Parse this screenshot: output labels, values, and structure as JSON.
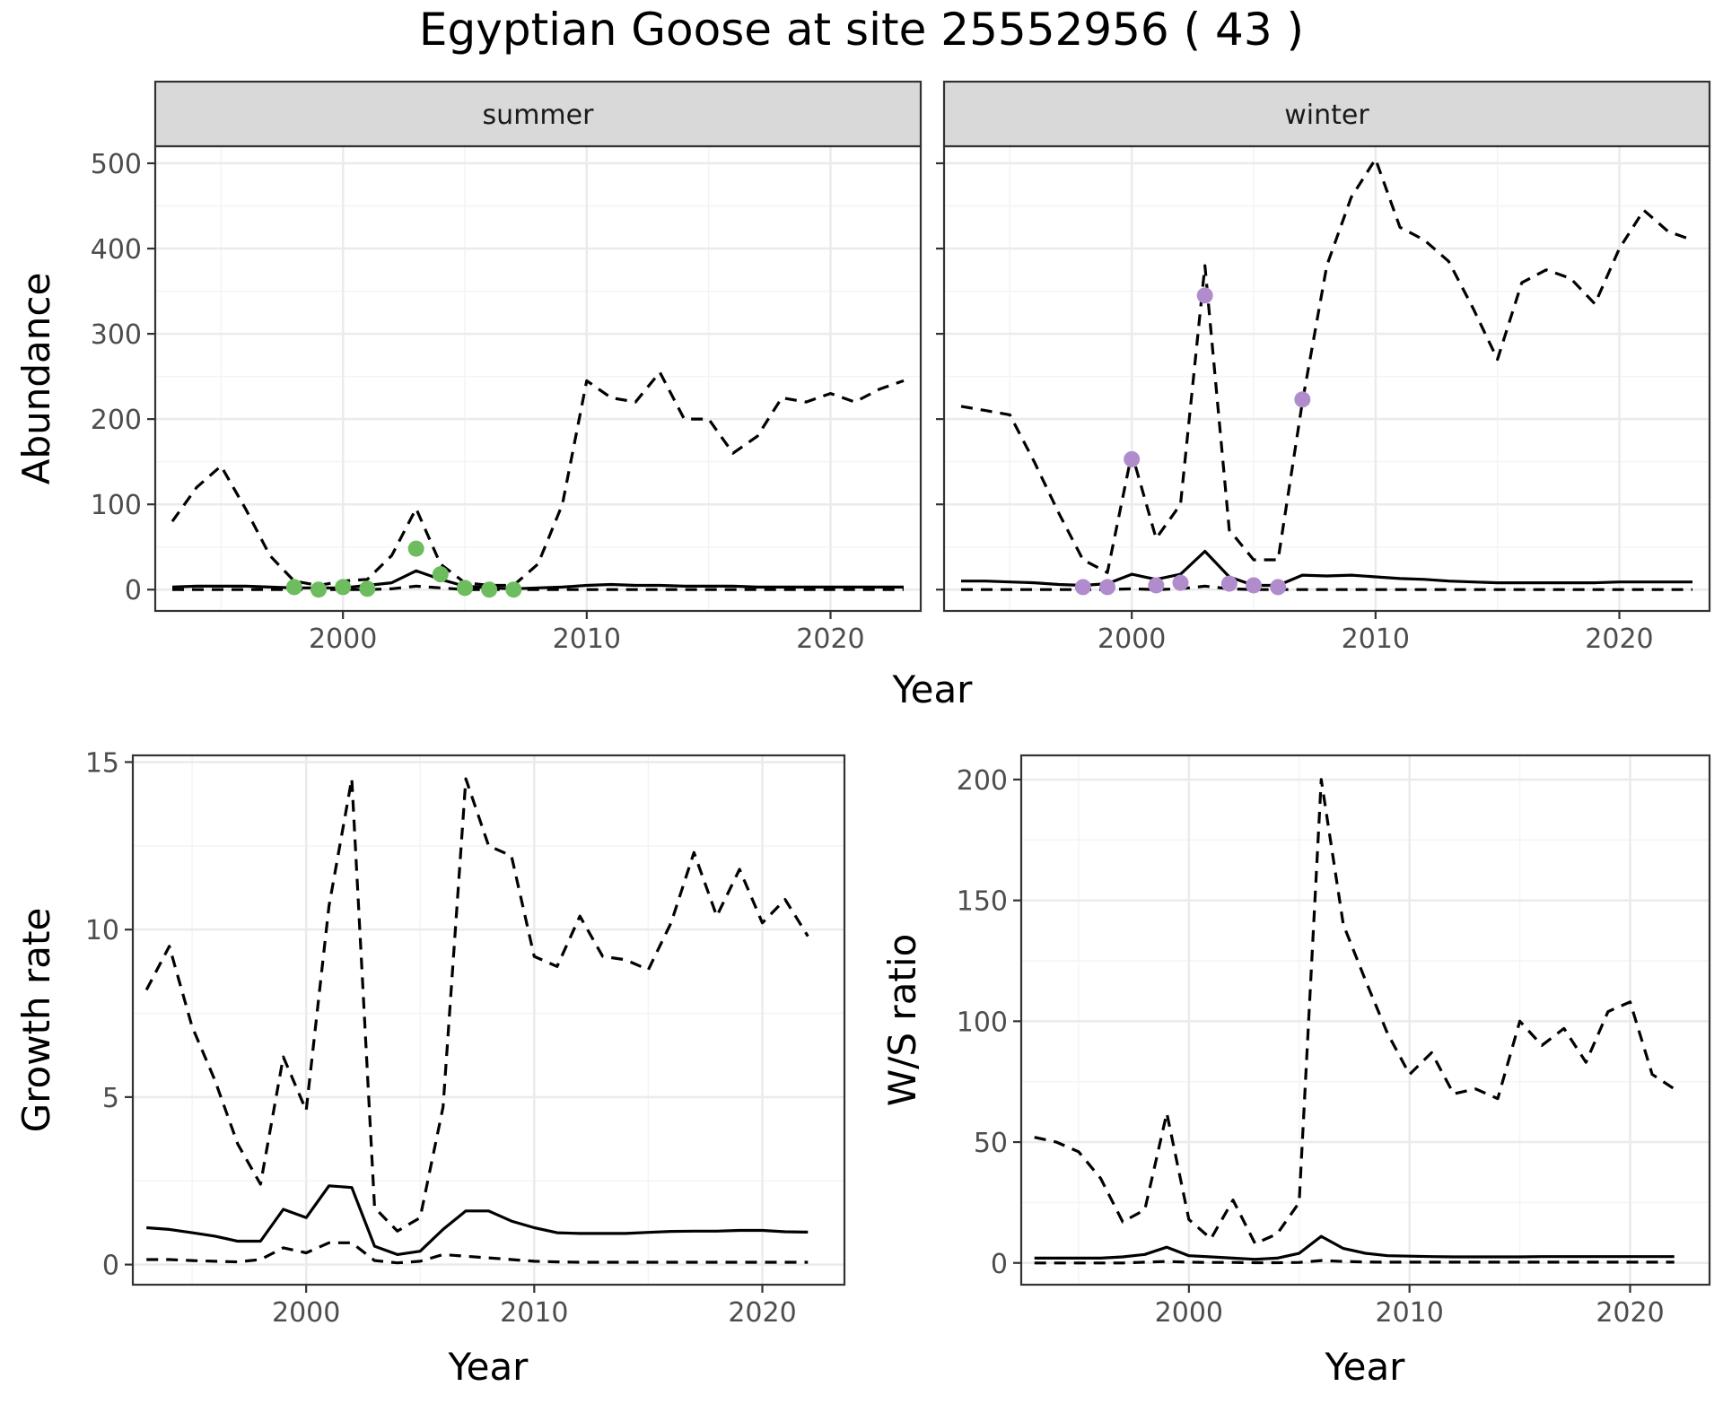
{
  "title": "Egyptian Goose at site 25552956 ( 43 )",
  "colors": {
    "summer_points": "#6dbd5f",
    "winter_points": "#b08ccc",
    "lines": "#000000",
    "grid_major": "#ebebeb",
    "grid_minor": "#f4f4f4",
    "strip_bg": "#d9d9d9",
    "panel_border": "#333333"
  },
  "chart_data": [
    {
      "id": "abundance",
      "type": "line",
      "ylabel": "Abundance",
      "xlabel": "Year",
      "xlim": [
        1992.3,
        2023.7
      ],
      "ylim": [
        -25,
        520
      ],
      "x_ticks": [
        2000,
        2010,
        2020
      ],
      "y_ticks": [
        0,
        100,
        200,
        300,
        400,
        500
      ],
      "grid": true,
      "facets": [
        {
          "strip": "summer",
          "series": [
            {
              "style": "solid",
              "x": [
                1993,
                1994,
                1995,
                1996,
                1997,
                1998,
                1999,
                2000,
                2001,
                2002,
                2003,
                2004,
                2005,
                2006,
                2007,
                2008,
                2009,
                2010,
                2011,
                2012,
                2013,
                2014,
                2015,
                2016,
                2017,
                2018,
                2019,
                2020,
                2021,
                2022,
                2023
              ],
              "y": [
                3,
                4,
                4,
                4,
                3,
                2,
                2,
                2,
                5,
                8,
                22,
                12,
                4,
                2,
                1,
                2,
                3,
                5,
                6,
                5,
                5,
                4,
                4,
                4,
                3,
                3,
                3,
                3,
                3,
                3,
                3
              ]
            },
            {
              "style": "dashed-upper",
              "x": [
                1993,
                1994,
                1995,
                1996,
                1997,
                1998,
                1999,
                2000,
                2001,
                2002,
                2003,
                2004,
                2005,
                2006,
                2007,
                2008,
                2009,
                2010,
                2011,
                2012,
                2013,
                2014,
                2015,
                2016,
                2017,
                2018,
                2019,
                2020,
                2021,
                2022,
                2023
              ],
              "y": [
                80,
                120,
                145,
                95,
                40,
                10,
                5,
                10,
                12,
                40,
                95,
                30,
                8,
                5,
                5,
                30,
                100,
                245,
                225,
                220,
                255,
                200,
                200,
                160,
                180,
                225,
                220,
                230,
                220,
                235,
                245
              ]
            },
            {
              "style": "dashed-lower",
              "x": [
                1993,
                1994,
                1995,
                1996,
                1997,
                1998,
                1999,
                2000,
                2001,
                2002,
                2003,
                2004,
                2005,
                2006,
                2007,
                2008,
                2009,
                2010,
                2011,
                2012,
                2013,
                2014,
                2015,
                2016,
                2017,
                2018,
                2019,
                2020,
                2021,
                2022,
                2023
              ],
              "y": [
                0,
                0,
                0,
                0,
                0,
                0,
                0,
                0,
                0,
                1,
                4,
                2,
                0,
                0,
                0,
                0,
                0,
                0,
                0,
                0,
                0,
                0,
                0,
                0,
                0,
                0,
                0,
                0,
                0,
                0,
                0
              ]
            },
            {
              "style": "points",
              "x": [
                1998,
                1999,
                2000,
                2001,
                2003,
                2004,
                2005,
                2006,
                2007
              ],
              "y": [
                3,
                0,
                3,
                1,
                48,
                18,
                2,
                0,
                0
              ]
            }
          ]
        },
        {
          "strip": "winter",
          "series": [
            {
              "style": "solid",
              "x": [
                1993,
                1994,
                1995,
                1996,
                1997,
                1998,
                1999,
                2000,
                2001,
                2002,
                2003,
                2004,
                2005,
                2006,
                2007,
                2008,
                2009,
                2010,
                2011,
                2012,
                2013,
                2014,
                2015,
                2016,
                2017,
                2018,
                2019,
                2020,
                2021,
                2022,
                2023
              ],
              "y": [
                10,
                10,
                9,
                8,
                6,
                5,
                7,
                18,
                12,
                18,
                45,
                15,
                5,
                5,
                17,
                16,
                17,
                15,
                13,
                12,
                10,
                9,
                8,
                8,
                8,
                8,
                8,
                9,
                9,
                9,
                9
              ]
            },
            {
              "style": "dashed-upper",
              "x": [
                1993,
                1994,
                1995,
                1996,
                1997,
                1998,
                1999,
                2000,
                2001,
                2002,
                2003,
                2004,
                2005,
                2006,
                2007,
                2008,
                2009,
                2010,
                2011,
                2012,
                2013,
                2014,
                2015,
                2016,
                2017,
                2018,
                2019,
                2020,
                2021,
                2022,
                2023
              ],
              "y": [
                215,
                210,
                205,
                150,
                90,
                35,
                20,
                160,
                60,
                100,
                380,
                70,
                35,
                35,
                220,
                380,
                460,
                505,
                425,
                410,
                385,
                330,
                270,
                360,
                375,
                365,
                335,
                400,
                445,
                420,
                410
              ]
            },
            {
              "style": "dashed-lower",
              "x": [
                1993,
                1994,
                1995,
                1996,
                1997,
                1998,
                1999,
                2000,
                2001,
                2002,
                2003,
                2004,
                2005,
                2006,
                2007,
                2008,
                2009,
                2010,
                2011,
                2012,
                2013,
                2014,
                2015,
                2016,
                2017,
                2018,
                2019,
                2020,
                2021,
                2022,
                2023
              ],
              "y": [
                0,
                0,
                0,
                0,
                0,
                0,
                0,
                1,
                0,
                1,
                4,
                1,
                0,
                0,
                0,
                0,
                0,
                0,
                0,
                0,
                0,
                0,
                0,
                0,
                0,
                0,
                0,
                0,
                0,
                0,
                0
              ]
            },
            {
              "style": "points",
              "x": [
                1998,
                1999,
                2000,
                2001,
                2002,
                2003,
                2004,
                2005,
                2006,
                2007
              ],
              "y": [
                3,
                3,
                153,
                5,
                8,
                345,
                7,
                5,
                3,
                223
              ]
            }
          ]
        }
      ]
    },
    {
      "id": "growth",
      "type": "line",
      "ylabel": "Growth rate",
      "xlabel": "Year",
      "xlim": [
        1992.4,
        2023.6
      ],
      "ylim": [
        -0.6,
        15.2
      ],
      "x_ticks": [
        2000,
        2010,
        2020
      ],
      "y_ticks": [
        0,
        5,
        10,
        15
      ],
      "grid": true,
      "series": [
        {
          "style": "solid",
          "x": [
            1993,
            1994,
            1995,
            1996,
            1997,
            1998,
            1999,
            2000,
            2001,
            2002,
            2003,
            2004,
            2005,
            2006,
            2007,
            2008,
            2009,
            2010,
            2011,
            2012,
            2013,
            2014,
            2015,
            2016,
            2017,
            2018,
            2019,
            2020,
            2021,
            2022
          ],
          "y": [
            1.1,
            1.05,
            0.95,
            0.85,
            0.7,
            0.7,
            1.65,
            1.4,
            2.35,
            2.3,
            0.55,
            0.3,
            0.4,
            1.05,
            1.6,
            1.6,
            1.3,
            1.1,
            0.95,
            0.93,
            0.93,
            0.93,
            0.96,
            0.99,
            1.0,
            1.0,
            1.02,
            1.02,
            0.98,
            0.97
          ]
        },
        {
          "style": "dashed-upper",
          "x": [
            1993,
            1994,
            1995,
            1996,
            1997,
            1998,
            1999,
            2000,
            2001,
            2002,
            2003,
            2004,
            2005,
            2006,
            2007,
            2008,
            2009,
            2010,
            2011,
            2012,
            2013,
            2014,
            2015,
            2016,
            2017,
            2018,
            2019,
            2020,
            2021,
            2022
          ],
          "y": [
            8.2,
            9.5,
            7.1,
            5.5,
            3.6,
            2.4,
            6.2,
            4.6,
            10.7,
            14.5,
            1.7,
            1.0,
            1.4,
            4.7,
            14.5,
            12.5,
            12.2,
            9.2,
            8.9,
            10.4,
            9.2,
            9.1,
            8.8,
            10.2,
            12.3,
            10.4,
            11.8,
            10.2,
            10.9,
            9.8
          ]
        },
        {
          "style": "dashed-lower",
          "x": [
            1993,
            1994,
            1995,
            1996,
            1997,
            1998,
            1999,
            2000,
            2001,
            2002,
            2003,
            2004,
            2005,
            2006,
            2007,
            2008,
            2009,
            2010,
            2011,
            2012,
            2013,
            2014,
            2015,
            2016,
            2017,
            2018,
            2019,
            2020,
            2021,
            2022
          ],
          "y": [
            0.15,
            0.15,
            0.12,
            0.1,
            0.08,
            0.15,
            0.5,
            0.35,
            0.65,
            0.65,
            0.12,
            0.05,
            0.1,
            0.3,
            0.25,
            0.2,
            0.15,
            0.1,
            0.08,
            0.07,
            0.07,
            0.07,
            0.07,
            0.07,
            0.07,
            0.07,
            0.07,
            0.07,
            0.07,
            0.07
          ]
        }
      ]
    },
    {
      "id": "ratio",
      "type": "line",
      "ylabel": "W/S ratio",
      "xlabel": "Year",
      "xlim": [
        1992.4,
        2023.6
      ],
      "ylim": [
        -9,
        210
      ],
      "x_ticks": [
        2000,
        2010,
        2020
      ],
      "y_ticks": [
        0,
        50,
        100,
        150,
        200
      ],
      "grid": true,
      "series": [
        {
          "style": "solid",
          "x": [
            1993,
            1994,
            1995,
            1996,
            1997,
            1998,
            1999,
            2000,
            2001,
            2002,
            2003,
            2004,
            2005,
            2006,
            2007,
            2008,
            2009,
            2010,
            2011,
            2012,
            2013,
            2014,
            2015,
            2016,
            2017,
            2018,
            2019,
            2020,
            2021,
            2022
          ],
          "y": [
            2,
            2,
            2,
            2,
            2.5,
            3.5,
            6.5,
            3,
            2.5,
            2,
            1.5,
            2,
            4,
            11,
            6,
            4,
            3,
            2.8,
            2.6,
            2.5,
            2.5,
            2.5,
            2.5,
            2.6,
            2.6,
            2.6,
            2.6,
            2.6,
            2.6,
            2.6
          ]
        },
        {
          "style": "dashed-upper",
          "x": [
            1993,
            1994,
            1995,
            1996,
            1997,
            1998,
            1999,
            2000,
            2001,
            2002,
            2003,
            2004,
            2005,
            2006,
            2007,
            2008,
            2009,
            2010,
            2011,
            2012,
            2013,
            2014,
            2015,
            2016,
            2017,
            2018,
            2019,
            2020,
            2021,
            2022
          ],
          "y": [
            52,
            50,
            46,
            35,
            17,
            22,
            62,
            18,
            10,
            26,
            8,
            12,
            25,
            200,
            140,
            117,
            95,
            78,
            87,
            70,
            72,
            68,
            100,
            90,
            97,
            83,
            104,
            108,
            78,
            72
          ]
        },
        {
          "style": "dashed-lower",
          "x": [
            1993,
            1994,
            1995,
            1996,
            1997,
            1998,
            1999,
            2000,
            2001,
            2002,
            2003,
            2004,
            2005,
            2006,
            2007,
            2008,
            2009,
            2010,
            2011,
            2012,
            2013,
            2014,
            2015,
            2016,
            2017,
            2018,
            2019,
            2020,
            2021,
            2022
          ],
          "y": [
            0,
            0,
            0,
            0,
            0,
            0.3,
            0.6,
            0.3,
            0.2,
            0.2,
            0.1,
            0.1,
            0.2,
            1,
            0.6,
            0.4,
            0.3,
            0.3,
            0.3,
            0.3,
            0.3,
            0.3,
            0.3,
            0.3,
            0.3,
            0.3,
            0.3,
            0.3,
            0.3,
            0.3
          ]
        }
      ]
    }
  ]
}
